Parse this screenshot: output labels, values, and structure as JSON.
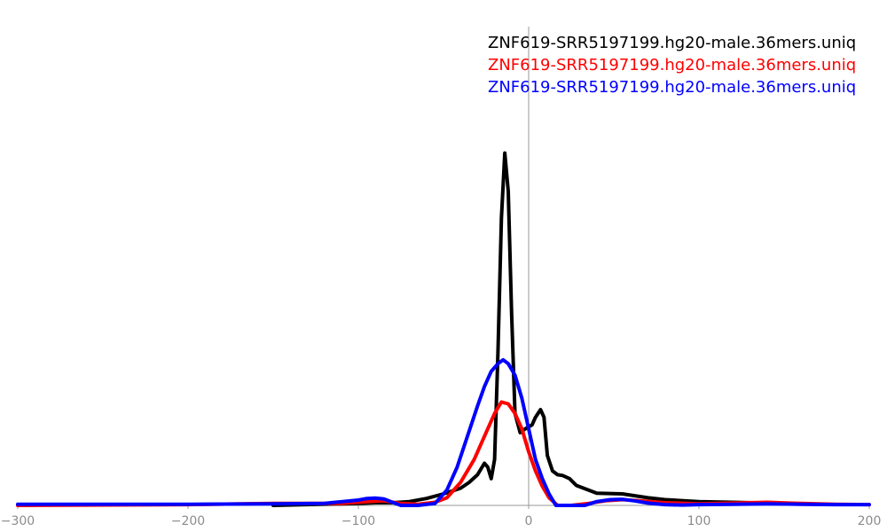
{
  "chart_data": {
    "type": "line",
    "title": "",
    "xlabel": "",
    "ylabel": "",
    "xlim": [
      -300,
      200
    ],
    "ylim": [
      0,
      1.0
    ],
    "grid": false,
    "legend_position": "top-right",
    "x_ticks": [
      -300,
      -200,
      -100,
      0,
      100,
      200
    ],
    "x_tick_labels": [
      "−300",
      "−200",
      "−100",
      "0",
      "100",
      "200"
    ],
    "series": [
      {
        "name": "ZNF619-SRR5197199.hg20-male.36mers.uniq",
        "color": "#000000",
        "points": [
          [
            -150,
            0.0
          ],
          [
            -100,
            0.005
          ],
          [
            -90,
            0.007
          ],
          [
            -80,
            0.007
          ],
          [
            -70,
            0.01
          ],
          [
            -60,
            0.018
          ],
          [
            -50,
            0.03
          ],
          [
            -40,
            0.045
          ],
          [
            -35,
            0.06
          ],
          [
            -30,
            0.08
          ],
          [
            -26,
            0.11
          ],
          [
            -24,
            0.1
          ],
          [
            -22,
            0.07
          ],
          [
            -20,
            0.12
          ],
          [
            -18,
            0.4
          ],
          [
            -16,
            0.75
          ],
          [
            -14,
            0.92
          ],
          [
            -12,
            0.82
          ],
          [
            -10,
            0.5
          ],
          [
            -8,
            0.24
          ],
          [
            -5,
            0.19
          ],
          [
            -2,
            0.2
          ],
          [
            2,
            0.21
          ],
          [
            4,
            0.23
          ],
          [
            7,
            0.25
          ],
          [
            9,
            0.23
          ],
          [
            11,
            0.13
          ],
          [
            14,
            0.09
          ],
          [
            17,
            0.08
          ],
          [
            20,
            0.078
          ],
          [
            24,
            0.07
          ],
          [
            28,
            0.052
          ],
          [
            34,
            0.042
          ],
          [
            40,
            0.032
          ],
          [
            55,
            0.03
          ],
          [
            70,
            0.02
          ],
          [
            80,
            0.015
          ],
          [
            100,
            0.01
          ],
          [
            120,
            0.008
          ],
          [
            140,
            0.006
          ],
          [
            150,
            0.004
          ]
        ]
      },
      {
        "name": "ZNF619-SRR5197199.hg20-male.36mers.uniq",
        "color": "#ff0000",
        "points": [
          [
            -300,
            0.0
          ],
          [
            -200,
            0.002
          ],
          [
            -150,
            0.005
          ],
          [
            -110,
            0.005
          ],
          [
            -95,
            0.01
          ],
          [
            -85,
            0.012
          ],
          [
            -75,
            0.005
          ],
          [
            -65,
            0.003
          ],
          [
            -55,
            0.008
          ],
          [
            -48,
            0.02
          ],
          [
            -40,
            0.06
          ],
          [
            -32,
            0.12
          ],
          [
            -26,
            0.18
          ],
          [
            -20,
            0.24
          ],
          [
            -16,
            0.27
          ],
          [
            -12,
            0.265
          ],
          [
            -8,
            0.24
          ],
          [
            -4,
            0.2
          ],
          [
            0,
            0.14
          ],
          [
            4,
            0.09
          ],
          [
            8,
            0.05
          ],
          [
            12,
            0.02
          ],
          [
            17,
            0.0
          ],
          [
            25,
            0.0
          ],
          [
            35,
            0.005
          ],
          [
            45,
            0.012
          ],
          [
            55,
            0.015
          ],
          [
            65,
            0.012
          ],
          [
            80,
            0.007
          ],
          [
            100,
            0.004
          ],
          [
            120,
            0.006
          ],
          [
            140,
            0.008
          ],
          [
            160,
            0.005
          ],
          [
            180,
            0.003
          ],
          [
            200,
            0.002
          ]
        ]
      },
      {
        "name": "ZNF619-SRR5197199.hg20-male.36mers.uniq",
        "color": "#0000ff",
        "points": [
          [
            -300,
            0.003
          ],
          [
            -200,
            0.003
          ],
          [
            -150,
            0.004
          ],
          [
            -120,
            0.005
          ],
          [
            -100,
            0.014
          ],
          [
            -95,
            0.018
          ],
          [
            -90,
            0.019
          ],
          [
            -85,
            0.017
          ],
          [
            -80,
            0.008
          ],
          [
            -75,
            0.0
          ],
          [
            -65,
            0.0
          ],
          [
            -55,
            0.005
          ],
          [
            -48,
            0.04
          ],
          [
            -42,
            0.1
          ],
          [
            -36,
            0.18
          ],
          [
            -30,
            0.26
          ],
          [
            -26,
            0.31
          ],
          [
            -22,
            0.35
          ],
          [
            -18,
            0.37
          ],
          [
            -15,
            0.38
          ],
          [
            -12,
            0.37
          ],
          [
            -8,
            0.34
          ],
          [
            -4,
            0.28
          ],
          [
            0,
            0.2
          ],
          [
            4,
            0.12
          ],
          [
            8,
            0.07
          ],
          [
            12,
            0.03
          ],
          [
            16,
            0.0
          ],
          [
            20,
            0.0
          ],
          [
            28,
            0.0
          ],
          [
            33,
            0.0
          ],
          [
            40,
            0.01
          ],
          [
            48,
            0.015
          ],
          [
            55,
            0.016
          ],
          [
            62,
            0.012
          ],
          [
            70,
            0.006
          ],
          [
            80,
            0.002
          ],
          [
            90,
            0.001
          ],
          [
            100,
            0.002
          ],
          [
            120,
            0.003
          ],
          [
            140,
            0.004
          ],
          [
            160,
            0.003
          ],
          [
            180,
            0.002
          ],
          [
            200,
            0.002
          ]
        ]
      }
    ]
  }
}
